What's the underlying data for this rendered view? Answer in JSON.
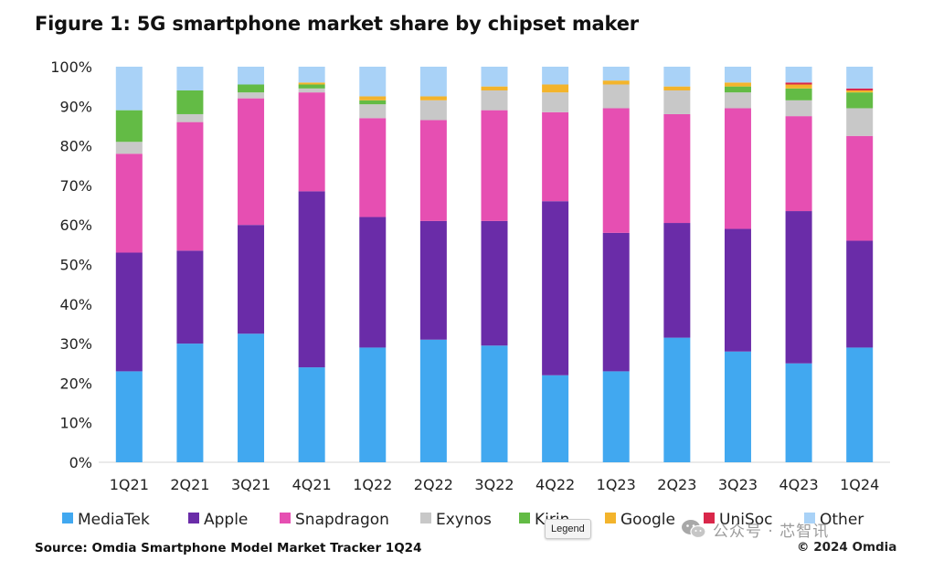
{
  "header": {
    "title": "Figure 1: 5G smartphone market share by chipset maker"
  },
  "footer": {
    "source": "Source: Omdia Smartphone Model Market Tracker 1Q24",
    "copyright": "© 2024 Omdia"
  },
  "tooltip": {
    "text": "Legend"
  },
  "watermark": {
    "text": "公众号 · 芯智讯",
    "icon": "wechat-icon"
  },
  "chart_data": {
    "type": "bar",
    "stacked": true,
    "title": "Figure 1: 5G smartphone market share by chipset maker",
    "xlabel": "",
    "ylabel": "",
    "ylim": [
      0,
      100
    ],
    "yticks": [
      "0%",
      "10%",
      "20%",
      "30%",
      "40%",
      "50%",
      "60%",
      "70%",
      "80%",
      "90%",
      "100%"
    ],
    "grid": false,
    "legend_position": "bottom",
    "categories": [
      "1Q21",
      "2Q21",
      "3Q21",
      "4Q21",
      "1Q22",
      "2Q22",
      "3Q22",
      "4Q22",
      "1Q23",
      "2Q23",
      "3Q23",
      "4Q23",
      "1Q24"
    ],
    "series": [
      {
        "name": "MediaTek",
        "color": "#41a8f0",
        "values": [
          23,
          30,
          32.5,
          24,
          29,
          31,
          29.5,
          22,
          23,
          31.5,
          28,
          25,
          29
        ]
      },
      {
        "name": "Apple",
        "color": "#6a2ca8",
        "values": [
          30,
          23.5,
          27.5,
          44.5,
          33,
          30,
          31.5,
          44,
          35,
          29,
          31,
          38.5,
          27
        ]
      },
      {
        "name": "Snapdragon",
        "color": "#e64fb2",
        "values": [
          25,
          32.5,
          32,
          25,
          25,
          25.5,
          28,
          22.5,
          31.5,
          27.5,
          30.5,
          24,
          26.5
        ]
      },
      {
        "name": "Exynos",
        "color": "#c8c8c8",
        "values": [
          3,
          2,
          1.5,
          1,
          3.5,
          5,
          5,
          5,
          6,
          6,
          4,
          4,
          7
        ]
      },
      {
        "name": "Kirin",
        "color": "#63bb45",
        "values": [
          8,
          6,
          2,
          1,
          1,
          0,
          0,
          0,
          0,
          0,
          1.5,
          3,
          4
        ]
      },
      {
        "name": "Google",
        "color": "#f3b42c",
        "values": [
          0,
          0,
          0,
          0.5,
          1,
          1,
          1,
          2,
          1,
          1,
          1,
          1,
          0.5
        ]
      },
      {
        "name": "UniSoc",
        "color": "#d9274a",
        "values": [
          0,
          0,
          0,
          0,
          0,
          0,
          0,
          0,
          0,
          0,
          0,
          0.5,
          0.5
        ]
      },
      {
        "name": "Other",
        "color": "#a9d2f7",
        "values": [
          11,
          6,
          4.5,
          4,
          7.5,
          7.5,
          5,
          4.5,
          3.5,
          5,
          4,
          4,
          5.5
        ]
      }
    ]
  }
}
